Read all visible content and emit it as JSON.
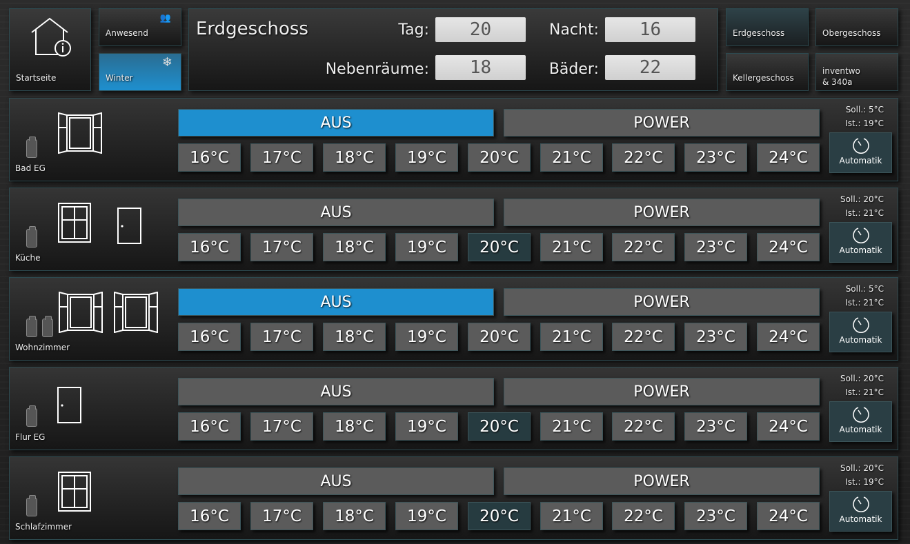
{
  "nav": {
    "home": "Startseite",
    "presence": "Anwesend",
    "season": "Winter",
    "floors": [
      {
        "label": "Erdgeschoss",
        "active": true
      },
      {
        "label": "Obergeschoss"
      },
      {
        "label": "Kellergeschoss"
      },
      {
        "label": "inventwo\n& 340a"
      }
    ]
  },
  "header": {
    "title": "Erdgeschoss",
    "fields": [
      {
        "label": "Tag:",
        "value": "20"
      },
      {
        "label": "Nacht:",
        "value": "16"
      },
      {
        "label": "Nebenräume:",
        "value": "18"
      },
      {
        "label": "Bäder:",
        "value": "22"
      }
    ]
  },
  "colors": {
    "accent": "#1e8fcf",
    "selected": "#263b40",
    "button": "#5b5b5b"
  },
  "mode_labels": {
    "off": "AUS",
    "power": "POWER",
    "auto": "Automatik"
  },
  "temps": [
    "16°C",
    "17°C",
    "18°C",
    "19°C",
    "20°C",
    "21°C",
    "22°C",
    "23°C",
    "24°C"
  ],
  "rooms": [
    {
      "name": "Bad EG",
      "soll": "Soll.: 5°C",
      "ist": "Ist.: 19°C",
      "aus_active": true,
      "selected_temp": null,
      "batteries": 1,
      "icons": [
        "window-open-icon"
      ]
    },
    {
      "name": "Küche",
      "soll": "Soll.: 20°C",
      "ist": "Ist.: 21°C",
      "aus_active": false,
      "selected_temp": "20°C",
      "batteries": 1,
      "icons": [
        "window-closed-icon",
        "door-icon"
      ]
    },
    {
      "name": "Wohnzimmer",
      "soll": "Soll.: 5°C",
      "ist": "Ist.: 21°C",
      "aus_active": true,
      "selected_temp": null,
      "batteries": 2,
      "icons": [
        "window-open-icon",
        "window-open-icon"
      ]
    },
    {
      "name": "Flur EG",
      "soll": "Soll.: 20°C",
      "ist": "Ist.: 21°C",
      "aus_active": false,
      "selected_temp": "20°C",
      "batteries": 1,
      "icons": [
        "door-icon"
      ]
    },
    {
      "name": "Schlafzimmer",
      "soll": "Soll.: 20°C",
      "ist": "Ist.: 19°C",
      "aus_active": false,
      "selected_temp": "20°C",
      "batteries": 1,
      "icons": [
        "window-closed-icon"
      ]
    }
  ]
}
